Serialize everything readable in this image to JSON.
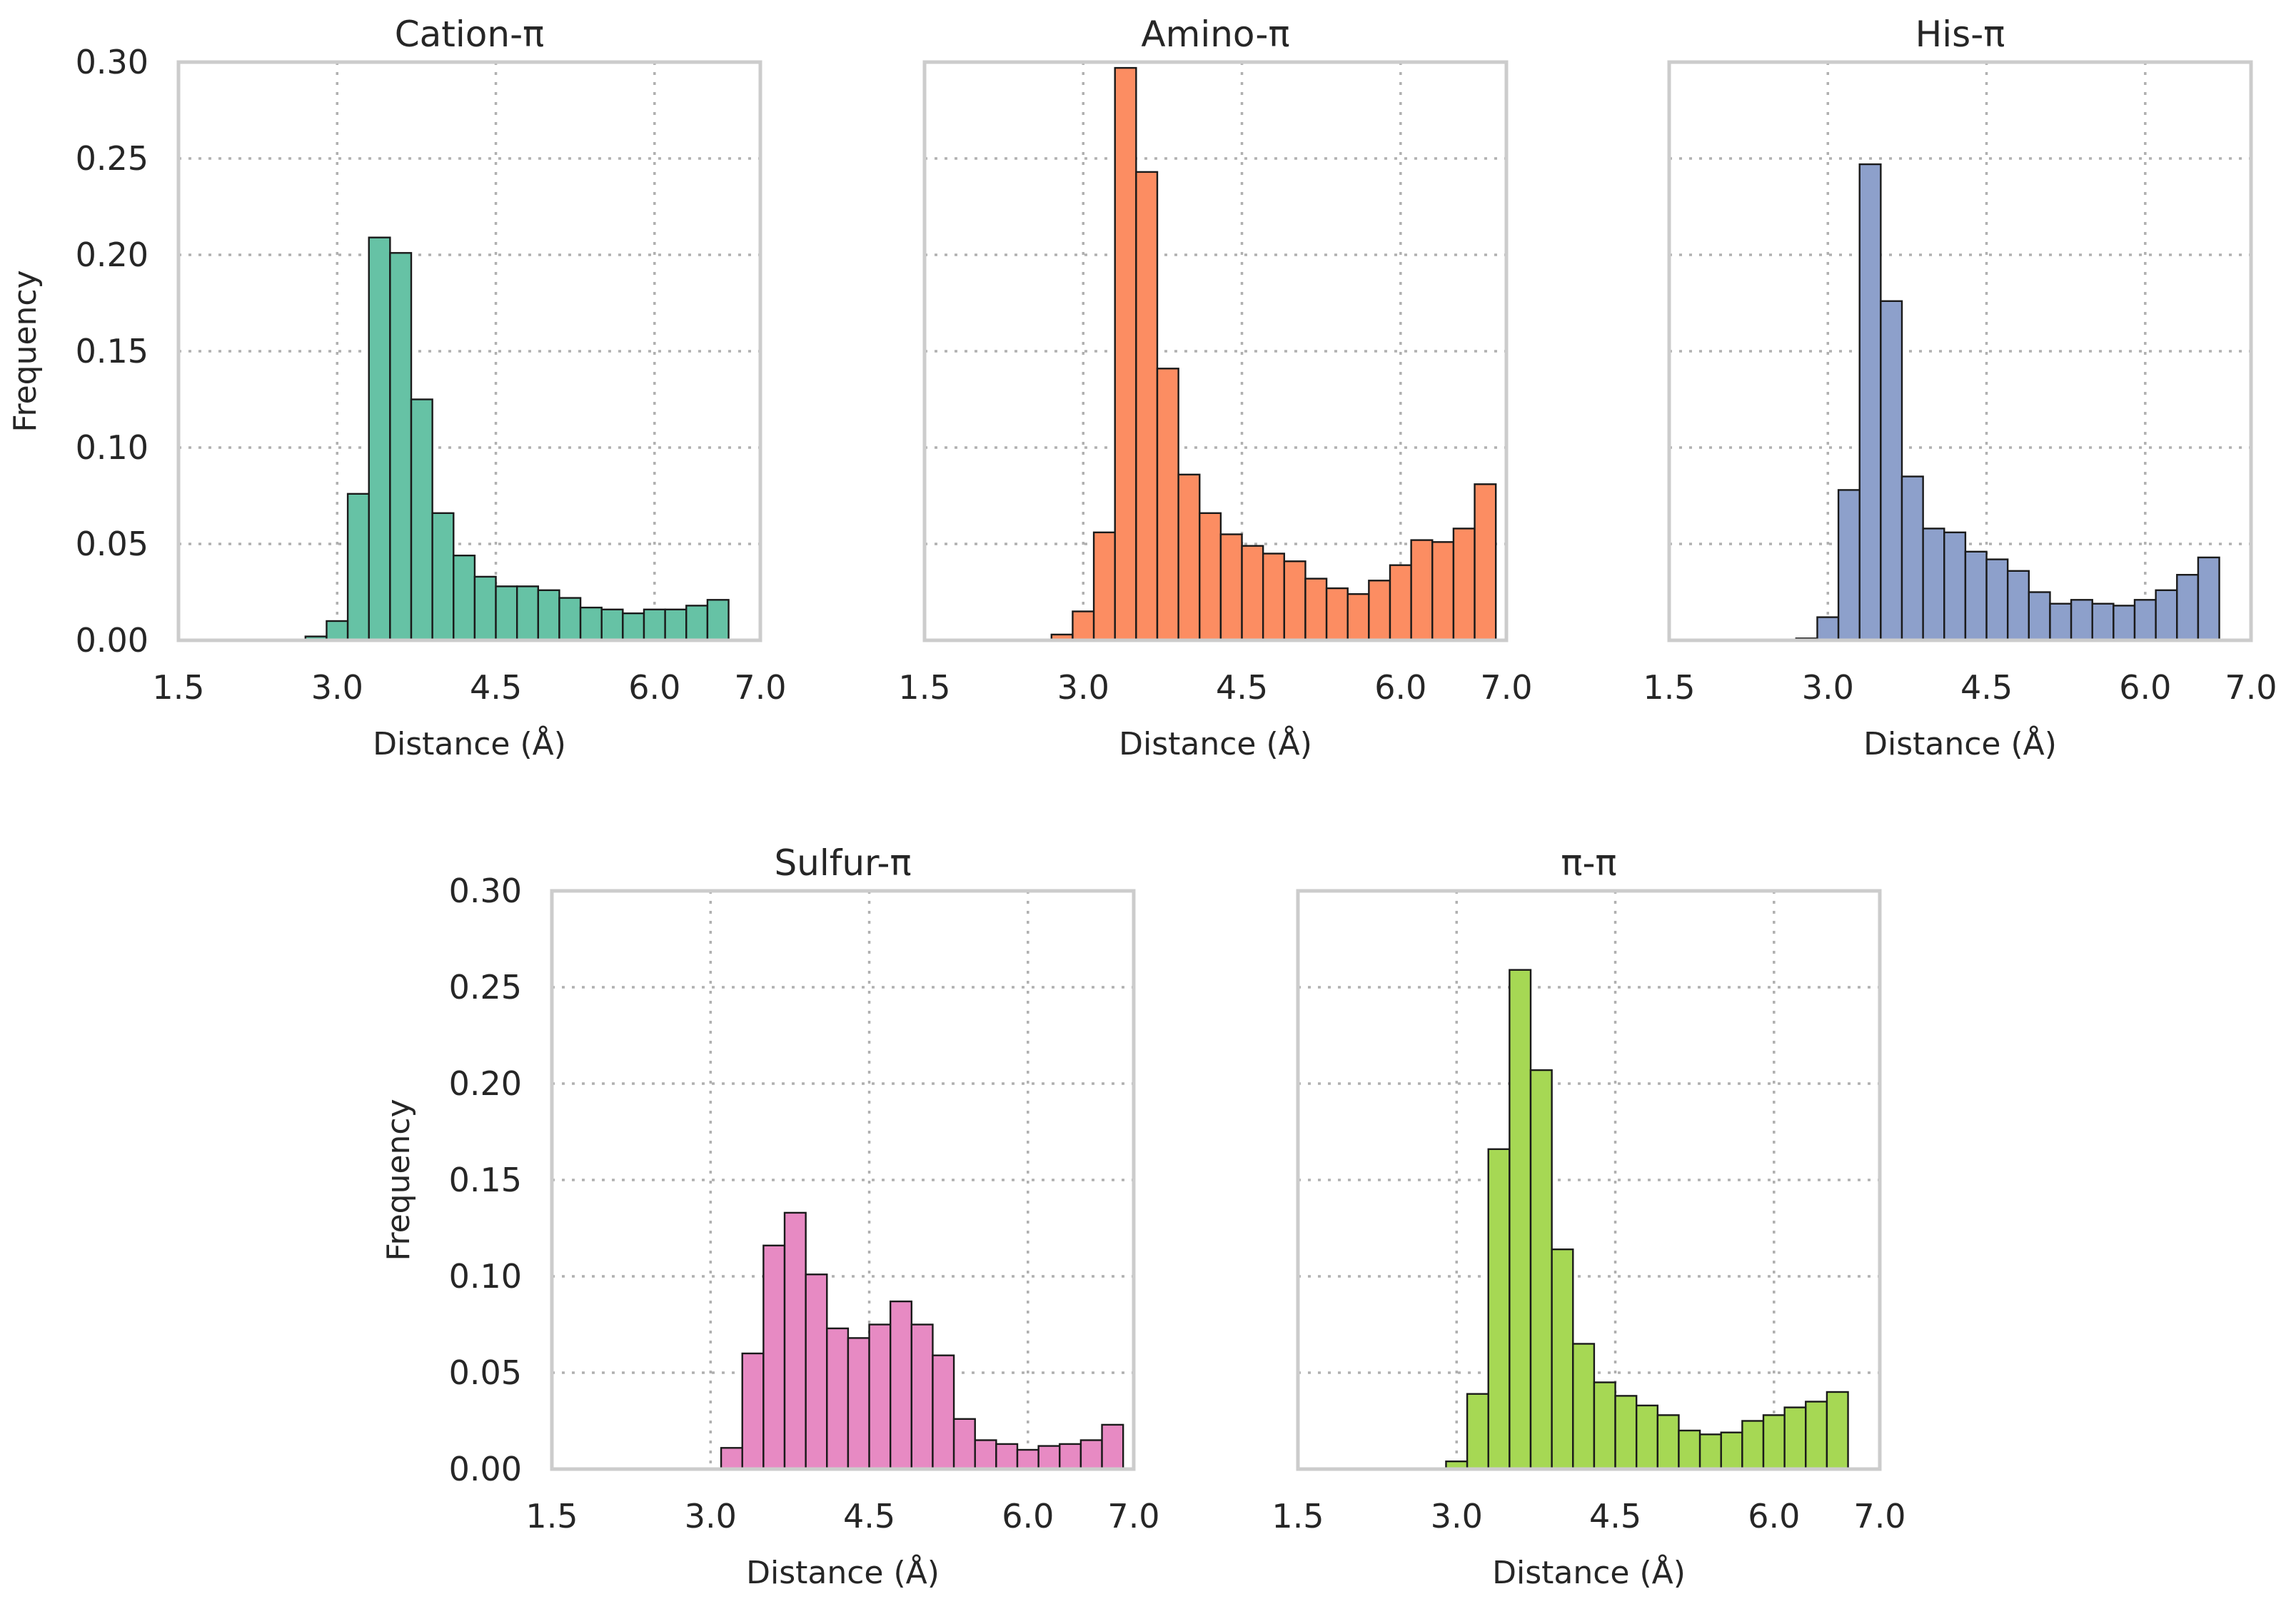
{
  "chart_data": [
    {
      "type": "bar",
      "title": "Cation-π",
      "xlabel": "Distance (Å)",
      "ylabel": "Frequency",
      "xlim": [
        1.5,
        7.0
      ],
      "ylim": [
        0,
        0.3
      ],
      "xticks": [
        "1.5",
        "3.0",
        "4.5",
        "6.0",
        "7.0"
      ],
      "yticks": [
        "0.00",
        "0.05",
        "0.10",
        "0.15",
        "0.20",
        "0.25",
        "0.30"
      ],
      "bin_start": 2.7,
      "bin_width": 0.2,
      "color": "#66c2a5",
      "values": [
        0.002,
        0.01,
        0.076,
        0.209,
        0.201,
        0.125,
        0.066,
        0.044,
        0.033,
        0.028,
        0.028,
        0.026,
        0.022,
        0.017,
        0.016,
        0.014,
        0.016,
        0.016,
        0.018,
        0.021
      ]
    },
    {
      "type": "bar",
      "title": "Amino-π",
      "xlabel": "Distance (Å)",
      "ylabel": "",
      "xlim": [
        1.5,
        7.0
      ],
      "ylim": [
        0,
        0.3
      ],
      "xticks": [
        "1.5",
        "3.0",
        "4.5",
        "6.0",
        "7.0"
      ],
      "yticks": [],
      "bin_start": 2.7,
      "bin_width": 0.2,
      "color": "#fc8d62",
      "values": [
        0.003,
        0.015,
        0.056,
        0.297,
        0.243,
        0.141,
        0.086,
        0.066,
        0.055,
        0.049,
        0.045,
        0.041,
        0.032,
        0.027,
        0.024,
        0.031,
        0.039,
        0.052,
        0.051,
        0.058,
        0.081
      ]
    },
    {
      "type": "bar",
      "title": "His-π",
      "xlabel": "Distance (Å)",
      "ylabel": "",
      "xlim": [
        1.5,
        7.0
      ],
      "ylim": [
        0,
        0.3
      ],
      "xticks": [
        "1.5",
        "3.0",
        "4.5",
        "6.0",
        "7.0"
      ],
      "yticks": [],
      "bin_start": 2.7,
      "bin_width": 0.2,
      "color": "#8da0cb",
      "values": [
        0.001,
        0.012,
        0.078,
        0.247,
        0.176,
        0.085,
        0.058,
        0.056,
        0.046,
        0.042,
        0.036,
        0.025,
        0.019,
        0.021,
        0.019,
        0.018,
        0.021,
        0.026,
        0.034,
        0.043
      ]
    },
    {
      "type": "bar",
      "title": "Sulfur-π",
      "xlabel": "Distance (Å)",
      "ylabel": "Frequency",
      "xlim": [
        1.5,
        7.0
      ],
      "ylim": [
        0,
        0.3
      ],
      "xticks": [
        "1.5",
        "3.0",
        "4.5",
        "6.0",
        "7.0"
      ],
      "yticks": [
        "0.00",
        "0.05",
        "0.10",
        "0.15",
        "0.20",
        "0.25",
        "0.30"
      ],
      "bin_start": 3.1,
      "bin_width": 0.2,
      "color": "#e78ac3",
      "values": [
        0.011,
        0.06,
        0.116,
        0.133,
        0.101,
        0.073,
        0.068,
        0.075,
        0.087,
        0.075,
        0.059,
        0.026,
        0.015,
        0.013,
        0.01,
        0.012,
        0.013,
        0.015,
        0.023
      ]
    },
    {
      "type": "bar",
      "title": "π-π",
      "xlabel": "Distance (Å)",
      "ylabel": "",
      "xlim": [
        1.5,
        7.0
      ],
      "ylim": [
        0,
        0.3
      ],
      "xticks": [
        "1.5",
        "3.0",
        "4.5",
        "6.0",
        "7.0"
      ],
      "yticks": [],
      "bin_start": 2.9,
      "bin_width": 0.2,
      "color": "#a6d854",
      "values": [
        0.004,
        0.039,
        0.166,
        0.259,
        0.207,
        0.114,
        0.065,
        0.045,
        0.038,
        0.033,
        0.028,
        0.02,
        0.018,
        0.019,
        0.025,
        0.028,
        0.032,
        0.035,
        0.04
      ]
    }
  ]
}
